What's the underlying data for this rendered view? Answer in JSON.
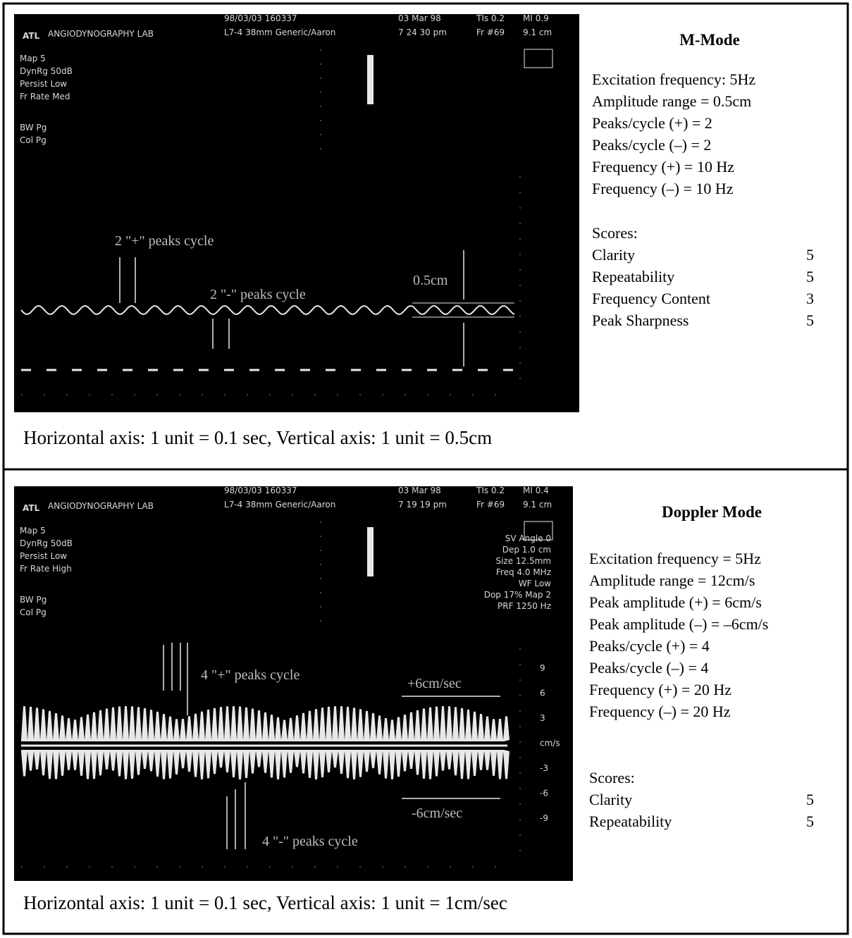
{
  "panels": [
    {
      "screen": {
        "logo": "ATL",
        "lab": "ANGIODYNOGRAPHY LAB",
        "header": [
          "98/03/03 160337",
          "L7-4 38mm Generic/Aaron"
        ],
        "date": [
          "03 Mar 98",
          "7 24 30 pm"
        ],
        "tis": [
          "TIs 0.2",
          "Fr #69"
        ],
        "mi": [
          "MI 0.9",
          "9.1 cm"
        ],
        "settings": [
          "Map 5",
          "DynRg 50dB",
          "Persist Low",
          "Fr Rate Med"
        ],
        "modes": [
          "BW    Pg",
          "Col    Pg"
        ],
        "annotations": [
          "2 \"+\" peaks cycle",
          "2 \"-\" peaks cycle",
          "0.5cm"
        ]
      },
      "title": "M-Mode",
      "details": [
        "Excitation frequency: 5Hz",
        "Amplitude range = 0.5cm",
        "Peaks/cycle (+) = 2",
        "Peaks/cycle (–) = 2",
        "Frequency (+) = 10 Hz",
        "Frequency (–) = 10 Hz"
      ],
      "scores_label": "Scores:",
      "scores": [
        [
          "Clarity",
          5
        ],
        [
          "Repeatability",
          5
        ],
        [
          "Frequency Content",
          3
        ],
        [
          "Peak Sharpness",
          5
        ]
      ],
      "caption": "Horizontal axis: 1 unit = 0.1 sec, Vertical axis: 1 unit = 0.5cm"
    },
    {
      "screen": {
        "logo": "ATL",
        "lab": "ANGIODYNOGRAPHY LAB",
        "header": [
          "98/03/03 160337",
          "L7-4 38mm Generic/Aaron"
        ],
        "date": [
          "03 Mar 98",
          "7 19 19 pm"
        ],
        "tis": [
          "TIs 0.2",
          "Fr #69"
        ],
        "mi": [
          "MI 0.4",
          "9.1 cm"
        ],
        "settings": [
          "Map 5",
          "DynRg 50dB",
          "Persist Low",
          "Fr Rate High"
        ],
        "modes": [
          "BW    Pg",
          "Col    Pg"
        ],
        "doppler": [
          "SV Angle 0",
          "Dep 1.0 cm",
          "Size 12.5mm",
          "Freq 4.0 MHz",
          "WF Low",
          "Dop 17%  Map 2",
          "PRF 1250 Hz"
        ],
        "scale": [
          "9",
          "6",
          "3",
          "cm/s",
          "-3",
          "-6",
          "-9"
        ],
        "annotations": [
          "4 \"+\" peaks cycle",
          "+6cm/sec",
          "-6cm/sec",
          "4 \"-\" peaks cycle"
        ]
      },
      "title": "Doppler Mode",
      "details": [
        "Excitation frequency = 5Hz",
        "Amplitude range = 12cm/s",
        "Peak amplitude (+) = 6cm/s",
        "Peak amplitude (–) = –6cm/s",
        "Peaks/cycle (+) = 4",
        "Peaks/cycle (–) = 4",
        "Frequency (+) = 20 Hz",
        "Frequency (–) = 20 Hz"
      ],
      "scores_label": "Scores:",
      "scores": [
        [
          "Clarity",
          5
        ],
        [
          "Repeatability",
          5
        ]
      ],
      "caption": "Horizontal axis: 1 unit = 0.1 sec,  Vertical axis: 1 unit = 1cm/sec"
    }
  ]
}
